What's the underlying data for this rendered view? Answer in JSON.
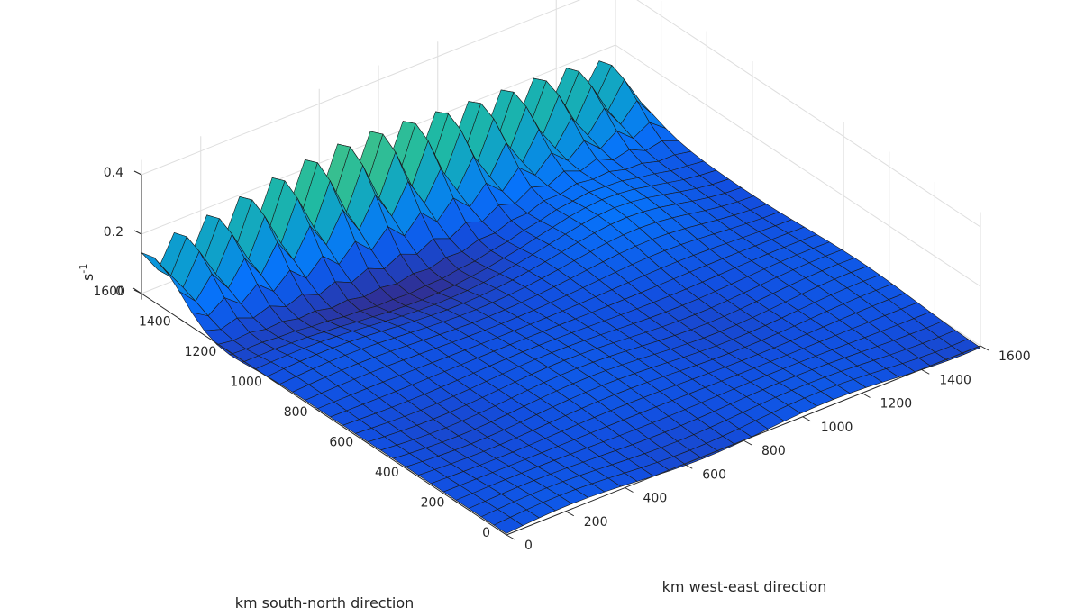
{
  "chart_data": {
    "type": "surface",
    "xlabel": "km west-east direction",
    "ylabel": "km south-north direction",
    "zlabel": "s",
    "zlabel_exponent": "-1",
    "xlim": [
      0,
      1600
    ],
    "ylim": [
      0,
      1600
    ],
    "zlim": [
      -0.05,
      0.45
    ],
    "x_ticks": [
      "0",
      "200",
      "400",
      "600",
      "800",
      "1000",
      "1200",
      "1400",
      "1600"
    ],
    "y_ticks": [
      "0",
      "200",
      "400",
      "600",
      "800",
      "1000",
      "1200",
      "1400",
      "1600"
    ],
    "z_ticks": [
      "0",
      "0.2",
      "0.4"
    ],
    "grid": true,
    "colormap": "parula",
    "grid_points": 30,
    "surface_features": [
      {
        "description": "crest along the north edge",
        "y": 1550,
        "z_peak": 0.27
      },
      {
        "description": "secondary crest",
        "y": 1300,
        "z_peak": 0.12
      }
    ]
  }
}
